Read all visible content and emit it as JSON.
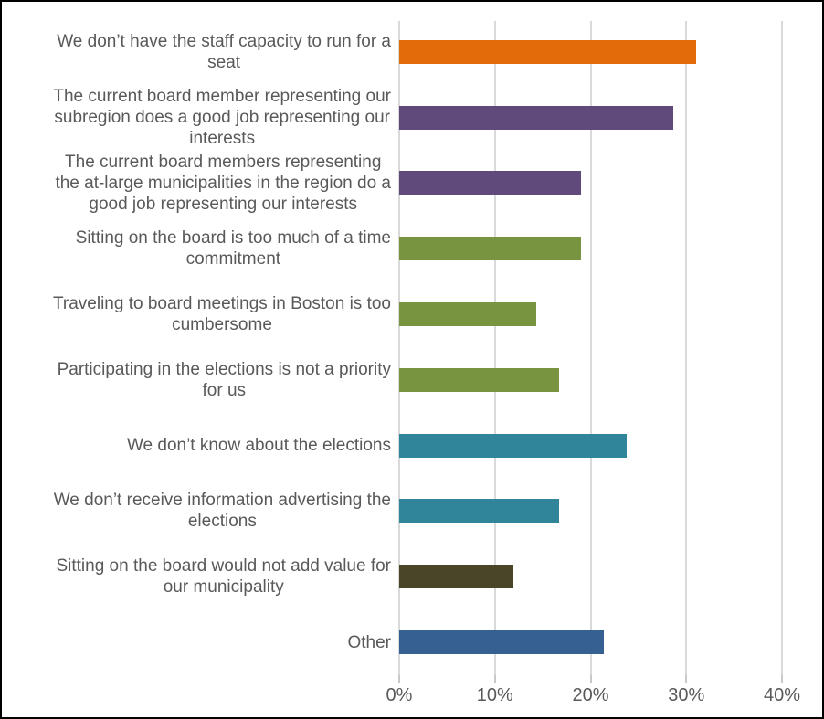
{
  "chart_data": {
    "type": "bar",
    "orientation": "horizontal",
    "title": "",
    "xlabel": "",
    "ylabel": "",
    "xlim": [
      0,
      40
    ],
    "x_tick_values": [
      0,
      10,
      20,
      30,
      40
    ],
    "x_tick_labels": [
      "0%",
      "10%",
      "20%",
      "30%",
      "40%"
    ],
    "grid": true,
    "legend": "none",
    "categories": [
      "We don’t have the staff capacity to run for a\nseat",
      "The current board member representing our\nsubregion does a good job representing our\ninterests",
      "The current board members representing\nthe at-large municipalities in the region do a\ngood job representing our interests",
      "Sitting on the board is too much of a time\ncommitment",
      "Traveling to board meetings in Boston is too\ncumbersome",
      "Participating in the elections is not a priority\nfor us",
      "We don’t know about the elections",
      "We don’t receive information advertising the\nelections",
      "Sitting on the board would not add value for\nour municipality",
      "Other"
    ],
    "values": [
      31.0,
      28.6,
      19.0,
      19.0,
      14.3,
      16.7,
      23.8,
      16.7,
      11.9,
      21.4
    ],
    "bar_colors": [
      "#E36C0A",
      "#604A7B",
      "#604A7B",
      "#789440",
      "#789440",
      "#789440",
      "#31859B",
      "#31859B",
      "#4A4429",
      "#366092"
    ],
    "colors": {
      "gridline": "#D9D9D9",
      "tick_mark": "#C9C9C9",
      "text": "#595959",
      "background": "#FFFFFF",
      "border": "#000000"
    }
  }
}
